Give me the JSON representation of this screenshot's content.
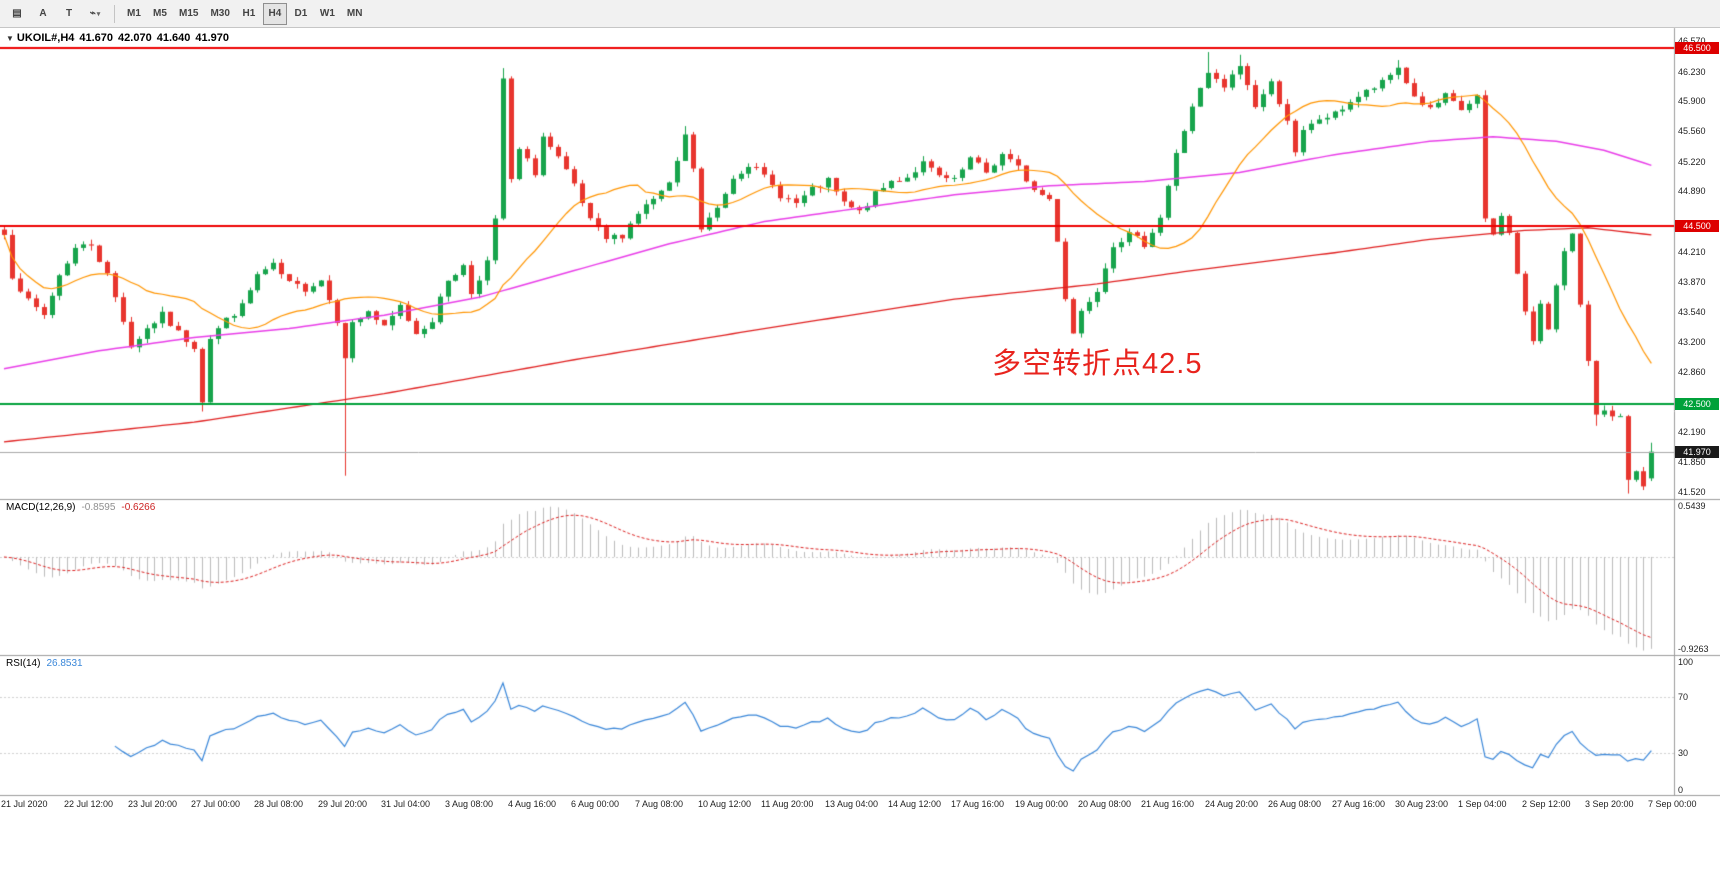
{
  "toolbar": {
    "icons": [
      {
        "name": "chart-list-icon",
        "glyph": "▤"
      },
      {
        "name": "text-a-icon",
        "glyph": "A"
      },
      {
        "name": "text-t-icon",
        "glyph": "T"
      },
      {
        "name": "indicator-zigzag-icon",
        "glyph": "⌁"
      }
    ],
    "dropdown_caret": "▾",
    "timeframes": [
      "M1",
      "M5",
      "M15",
      "M30",
      "H1",
      "H4",
      "D1",
      "W1",
      "MN"
    ],
    "active_timeframe": "H4"
  },
  "symbol": {
    "caret": "▼",
    "name": "UKOIL#,H4",
    "open": "41.670",
    "high": "42.070",
    "low": "41.640",
    "close": "41.970"
  },
  "annotation": {
    "text": "多空转折点42.5",
    "color": "#e8231d"
  },
  "indicators": {
    "macd": {
      "label": "MACD(12,26,9)",
      "value_main": "-0.8595",
      "value_signal": "-0.6266",
      "axis_top": "0.5439",
      "axis_bottom": "-0.9263"
    },
    "rsi": {
      "label": "RSI(14)",
      "value": "26.8531",
      "axis": [
        "100",
        "70",
        "30",
        "0"
      ],
      "levels": [
        70,
        30
      ]
    }
  },
  "price_axis": {
    "labels": [
      "46.570",
      "46.230",
      "45.900",
      "45.560",
      "45.220",
      "44.890",
      "44.210",
      "43.870",
      "43.540",
      "43.200",
      "42.860",
      "42.190",
      "41.850",
      "41.520"
    ],
    "badges": [
      {
        "text": "46.500",
        "price": 46.5,
        "bg": "#dd0000"
      },
      {
        "text": "44.500",
        "price": 44.5,
        "bg": "#dd0000"
      },
      {
        "text": "42.500",
        "price": 42.5,
        "bg": "#00a13a"
      },
      {
        "text": "41.970",
        "price": 41.97,
        "bg": "#1a1a1a"
      }
    ]
  },
  "time_axis": {
    "labels": [
      "21 Jul 2020",
      "22 Jul 12:00",
      "23 Jul 20:00",
      "27 Jul 00:00",
      "28 Jul 08:00",
      "29 Jul 20:00",
      "31 Jul 04:00",
      "3 Aug 08:00",
      "4 Aug 16:00",
      "6 Aug 00:00",
      "7 Aug 08:00",
      "10 Aug 12:00",
      "11 Aug 20:00",
      "13 Aug 04:00",
      "14 Aug 12:00",
      "17 Aug 16:00",
      "19 Aug 00:00",
      "20 Aug 08:00",
      "21 Aug 16:00",
      "24 Aug 20:00",
      "26 Aug 08:00",
      "27 Aug 16:00",
      "30 Aug 23:00",
      "1 Sep 04:00",
      "2 Sep 12:00",
      "3 Sep 20:00",
      "7 Sep 00:00"
    ]
  },
  "chart_data": {
    "type": "candlestick",
    "symbol": "UKOIL#",
    "timeframe": "H4",
    "candle_count": 209,
    "price_range": [
      41.45,
      46.72
    ],
    "close_anchors": [
      [
        0,
        44.4
      ],
      [
        1,
        43.95
      ],
      [
        3,
        43.65
      ],
      [
        5,
        43.5
      ],
      [
        7,
        43.95
      ],
      [
        9,
        44.25
      ],
      [
        11,
        44.3
      ],
      [
        13,
        43.95
      ],
      [
        15,
        43.45
      ],
      [
        16,
        43.15
      ],
      [
        18,
        43.35
      ],
      [
        20,
        43.5
      ],
      [
        22,
        43.3
      ],
      [
        24,
        43.15
      ],
      [
        25,
        42.55
      ],
      [
        26,
        43.25
      ],
      [
        28,
        43.45
      ],
      [
        30,
        43.6
      ],
      [
        32,
        43.95
      ],
      [
        34,
        44.05
      ],
      [
        36,
        43.85
      ],
      [
        38,
        43.8
      ],
      [
        40,
        43.9
      ],
      [
        42,
        43.45
      ],
      [
        43,
        43.05
      ],
      [
        44,
        43.4
      ],
      [
        46,
        43.55
      ],
      [
        48,
        43.35
      ],
      [
        50,
        43.6
      ],
      [
        52,
        43.3
      ],
      [
        54,
        43.45
      ],
      [
        56,
        43.9
      ],
      [
        58,
        44.05
      ],
      [
        59,
        43.75
      ],
      [
        61,
        44.1
      ],
      [
        62,
        44.55
      ],
      [
        63,
        46.15
      ],
      [
        64,
        45.0
      ],
      [
        65,
        45.35
      ],
      [
        67,
        45.1
      ],
      [
        68,
        45.5
      ],
      [
        70,
        45.25
      ],
      [
        72,
        44.95
      ],
      [
        74,
        44.55
      ],
      [
        76,
        44.35
      ],
      [
        78,
        44.4
      ],
      [
        80,
        44.65
      ],
      [
        82,
        44.8
      ],
      [
        84,
        44.95
      ],
      [
        86,
        45.5
      ],
      [
        87,
        45.15
      ],
      [
        88,
        44.45
      ],
      [
        90,
        44.7
      ],
      [
        92,
        45.05
      ],
      [
        94,
        45.2
      ],
      [
        96,
        45.05
      ],
      [
        98,
        44.85
      ],
      [
        100,
        44.75
      ],
      [
        102,
        44.9
      ],
      [
        104,
        45.0
      ],
      [
        106,
        44.75
      ],
      [
        108,
        44.65
      ],
      [
        110,
        44.85
      ],
      [
        112,
        45.0
      ],
      [
        114,
        45.05
      ],
      [
        116,
        45.2
      ],
      [
        118,
        45.05
      ],
      [
        120,
        45.0
      ],
      [
        122,
        45.25
      ],
      [
        124,
        45.1
      ],
      [
        126,
        45.3
      ],
      [
        128,
        45.15
      ],
      [
        130,
        44.9
      ],
      [
        132,
        44.8
      ],
      [
        133,
        44.35
      ],
      [
        134,
        43.7
      ],
      [
        135,
        43.3
      ],
      [
        136,
        43.55
      ],
      [
        138,
        43.8
      ],
      [
        140,
        44.3
      ],
      [
        142,
        44.4
      ],
      [
        144,
        44.3
      ],
      [
        146,
        44.6
      ],
      [
        148,
        45.3
      ],
      [
        150,
        45.85
      ],
      [
        152,
        46.2
      ],
      [
        154,
        46.05
      ],
      [
        156,
        46.3
      ],
      [
        158,
        45.85
      ],
      [
        160,
        46.1
      ],
      [
        162,
        45.7
      ],
      [
        163,
        45.3
      ],
      [
        164,
        45.55
      ],
      [
        166,
        45.7
      ],
      [
        168,
        45.75
      ],
      [
        170,
        45.9
      ],
      [
        172,
        46.0
      ],
      [
        174,
        46.1
      ],
      [
        176,
        46.28
      ],
      [
        178,
        45.95
      ],
      [
        180,
        45.8
      ],
      [
        182,
        45.95
      ],
      [
        184,
        45.8
      ],
      [
        186,
        45.95
      ],
      [
        187,
        44.55
      ],
      [
        188,
        44.4
      ],
      [
        189,
        44.6
      ],
      [
        190,
        44.45
      ],
      [
        191,
        43.95
      ],
      [
        192,
        43.55
      ],
      [
        193,
        43.2
      ],
      [
        194,
        43.6
      ],
      [
        195,
        43.35
      ],
      [
        196,
        43.85
      ],
      [
        197,
        44.25
      ],
      [
        198,
        44.4
      ],
      [
        199,
        43.6
      ],
      [
        200,
        42.95
      ],
      [
        201,
        42.4
      ],
      [
        202,
        42.45
      ],
      [
        203,
        42.4
      ],
      [
        204,
        42.35
      ],
      [
        205,
        41.62
      ],
      [
        206,
        41.75
      ],
      [
        207,
        41.58
      ],
      [
        208,
        41.97
      ]
    ],
    "wick_overrides": [
      {
        "i": 25,
        "low": 42.42
      },
      {
        "i": 43,
        "low": 41.7
      },
      {
        "i": 63,
        "high": 46.27
      },
      {
        "i": 86,
        "high": 45.62
      },
      {
        "i": 152,
        "high": 46.45
      },
      {
        "i": 156,
        "high": 46.42
      },
      {
        "i": 176,
        "high": 46.36
      },
      {
        "i": 201,
        "low": 42.26
      },
      {
        "i": 205,
        "low": 41.5
      }
    ],
    "last_candle": {
      "open": 41.67,
      "high": 42.07,
      "low": 41.64,
      "close": 41.97
    },
    "hlines": [
      {
        "price": 46.5,
        "color": "#ee0000",
        "width": 2
      },
      {
        "price": 44.5,
        "color": "#ee0000",
        "width": 2
      },
      {
        "price": 42.5,
        "color": "#00a13a",
        "width": 2
      },
      {
        "price": 41.97,
        "color": "#a8a8a8",
        "width": 1
      }
    ],
    "ma_fast_period": 18,
    "ma_mid_anchors": [
      [
        0,
        42.9
      ],
      [
        12,
        43.1
      ],
      [
        24,
        43.25
      ],
      [
        36,
        43.35
      ],
      [
        48,
        43.5
      ],
      [
        60,
        43.7
      ],
      [
        72,
        44.0
      ],
      [
        84,
        44.3
      ],
      [
        96,
        44.55
      ],
      [
        108,
        44.7
      ],
      [
        120,
        44.85
      ],
      [
        132,
        44.95
      ],
      [
        144,
        45.0
      ],
      [
        156,
        45.1
      ],
      [
        168,
        45.3
      ],
      [
        180,
        45.45
      ],
      [
        188,
        45.5
      ],
      [
        196,
        45.45
      ],
      [
        202,
        45.35
      ],
      [
        208,
        45.18
      ]
    ],
    "ma_slow_anchors": [
      [
        0,
        42.08
      ],
      [
        24,
        42.3
      ],
      [
        48,
        42.62
      ],
      [
        72,
        43.0
      ],
      [
        96,
        43.35
      ],
      [
        120,
        43.68
      ],
      [
        138,
        43.85
      ],
      [
        150,
        44.0
      ],
      [
        168,
        44.2
      ],
      [
        180,
        44.35
      ],
      [
        192,
        44.45
      ],
      [
        200,
        44.48
      ],
      [
        208,
        44.4
      ]
    ],
    "macd_range": [
      -0.9263,
      0.5439
    ],
    "rsi_range": [
      0,
      100
    ],
    "colors": {
      "bull": "#17a44c",
      "bear": "#e8352e",
      "ma_fast": "#ff9500",
      "ma_mid": "#e93ee9",
      "ma_slow": "#e02020",
      "macd_hist": "#bcbcbc",
      "macd_signal": "#dd2222",
      "rsi": "#3a87d9",
      "grid": "#9b9b9b"
    }
  }
}
